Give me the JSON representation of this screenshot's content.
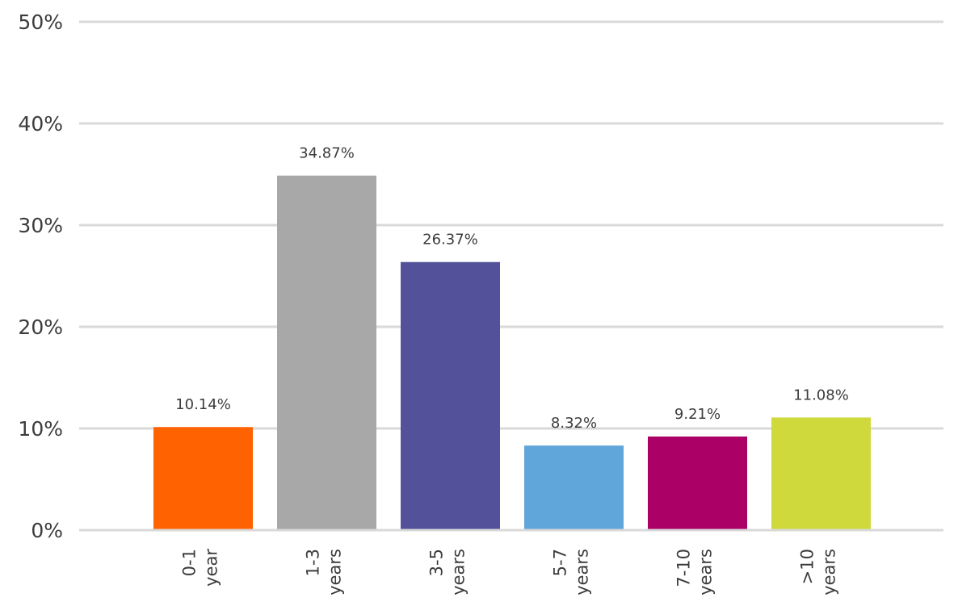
{
  "chart_data": {
    "type": "bar",
    "categories": [
      [
        "0-1",
        "year"
      ],
      [
        "1-3",
        "years"
      ],
      [
        "3-5",
        "years"
      ],
      [
        "5-7",
        "years"
      ],
      [
        "7-10",
        "years"
      ],
      [
        ">10",
        "years"
      ]
    ],
    "values": [
      10.14,
      34.87,
      26.37,
      8.32,
      9.21,
      11.08
    ],
    "data_labels": [
      "10.14%",
      "34.87%",
      "26.37%",
      "8.32%",
      "9.21%",
      "11.08%"
    ],
    "colors": [
      "#ff6200",
      "#a8a8a8",
      "#525199",
      "#60a6da",
      "#ab0066",
      "#d0d93c"
    ],
    "y_ticks": [
      0,
      10,
      20,
      30,
      40,
      50
    ],
    "y_tick_labels": [
      "0%",
      "10%",
      "20%",
      "30%",
      "40%",
      "50%"
    ],
    "ylim": [
      0,
      50
    ],
    "grid": true,
    "title": "",
    "xlabel": "",
    "ylabel": ""
  }
}
